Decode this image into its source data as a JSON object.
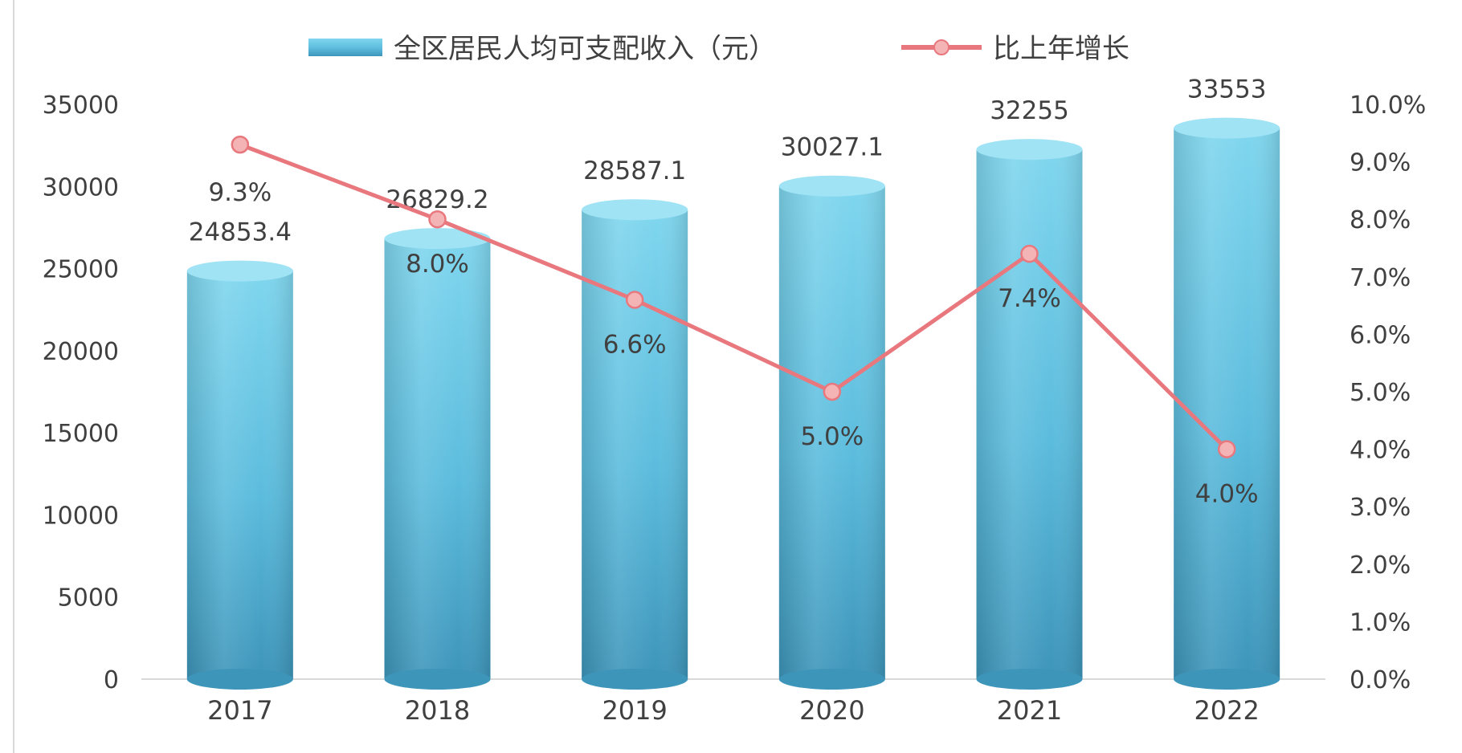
{
  "chart_data": {
    "type": "bar",
    "categories": [
      "2017",
      "2018",
      "2019",
      "2020",
      "2021",
      "2022"
    ],
    "series": [
      {
        "name": "全区居民人均可支配收入（元）",
        "type": "bar",
        "axis": "left",
        "values": [
          24853.4,
          26829.2,
          28587.1,
          30027.1,
          32255,
          33553
        ],
        "labels": [
          "24853.4",
          "26829.2",
          "28587.1",
          "30027.1",
          "32255",
          "33553"
        ]
      },
      {
        "name": "比上年增长",
        "type": "line",
        "axis": "right",
        "values": [
          9.3,
          8.0,
          6.6,
          5.0,
          7.4,
          4.0
        ],
        "labels": [
          "9.3%",
          "8.0%",
          "6.6%",
          "5.0%",
          "7.4%",
          "4.0%"
        ]
      }
    ],
    "y_left": {
      "min": 0,
      "max": 35000,
      "ticks": [
        "0",
        "5000",
        "10000",
        "15000",
        "20000",
        "25000",
        "30000",
        "35000"
      ]
    },
    "y_right": {
      "min": 0,
      "max": 10,
      "ticks": [
        "0.0%",
        "1.0%",
        "2.0%",
        "3.0%",
        "4.0%",
        "5.0%",
        "6.0%",
        "7.0%",
        "8.0%",
        "9.0%",
        "10.0%"
      ]
    },
    "legend_position": "top",
    "grid": false,
    "colors": {
      "bar_light": "#7fd6ee",
      "bar_mid": "#5cc0e0",
      "bar_dark": "#3d95ba",
      "bar_top": "#9fe3f5",
      "line": "#e8787d",
      "marker_fill": "#f4b3b5",
      "text": "#404040",
      "axis_line": "#d9d9d9"
    }
  }
}
